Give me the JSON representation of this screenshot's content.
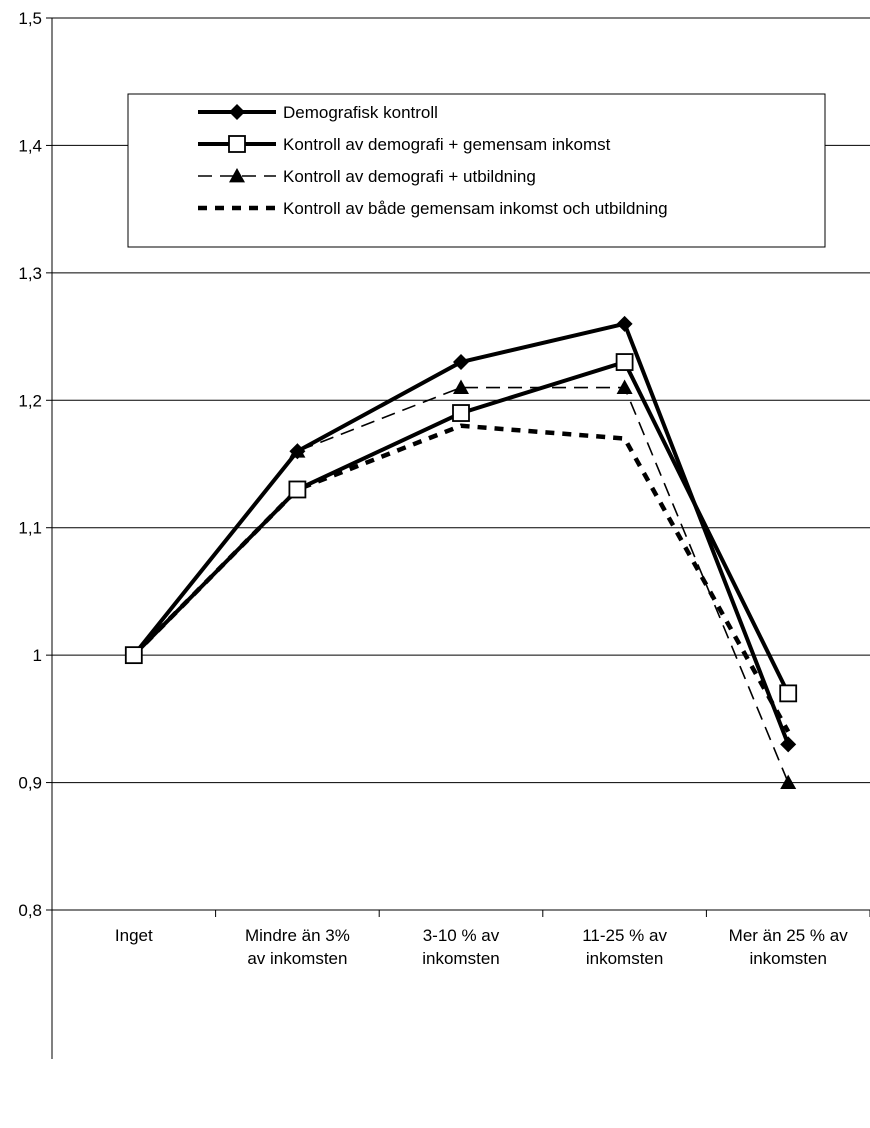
{
  "chart_data": {
    "type": "line",
    "title": "",
    "xlabel": "",
    "ylabel": "",
    "categories": [
      [
        "Inget"
      ],
      [
        "Mindre än 3%",
        "av inkomsten"
      ],
      [
        "3-10 % av",
        "inkomsten"
      ],
      [
        "11-25 % av",
        "inkomsten"
      ],
      [
        "Mer än 25 % av",
        "inkomsten"
      ]
    ],
    "ylim": [
      0.8,
      1.5
    ],
    "yticks": [
      "0,8",
      "0,9",
      "1",
      "1,1",
      "1,2",
      "1,3",
      "1,4",
      "1,5"
    ],
    "ytick_values": [
      0.8,
      0.9,
      1.0,
      1.1,
      1.2,
      1.3,
      1.4,
      1.5
    ],
    "grid": true,
    "legend_position": "top-center",
    "series": [
      {
        "name": "Demografisk kontroll",
        "values": [
          1.0,
          1.16,
          1.23,
          1.26,
          0.93
        ],
        "marker": "diamond",
        "line": "solid-thick",
        "color": "#000000"
      },
      {
        "name": "Kontroll av demografi + gemensam inkomst",
        "values": [
          1.0,
          1.13,
          1.19,
          1.23,
          0.97
        ],
        "marker": "square-open",
        "line": "solid-thick",
        "color": "#000000"
      },
      {
        "name": "Kontroll av demografi + utbildning",
        "values": [
          1.0,
          1.16,
          1.21,
          1.21,
          0.9
        ],
        "marker": "triangle",
        "line": "dashed-thin",
        "color": "#000000"
      },
      {
        "name": "Kontroll av både gemensam inkomst och utbildning",
        "values": [
          1.0,
          1.13,
          1.18,
          1.17,
          0.94
        ],
        "marker": "none",
        "line": "dotted-thick",
        "color": "#000000"
      }
    ]
  }
}
